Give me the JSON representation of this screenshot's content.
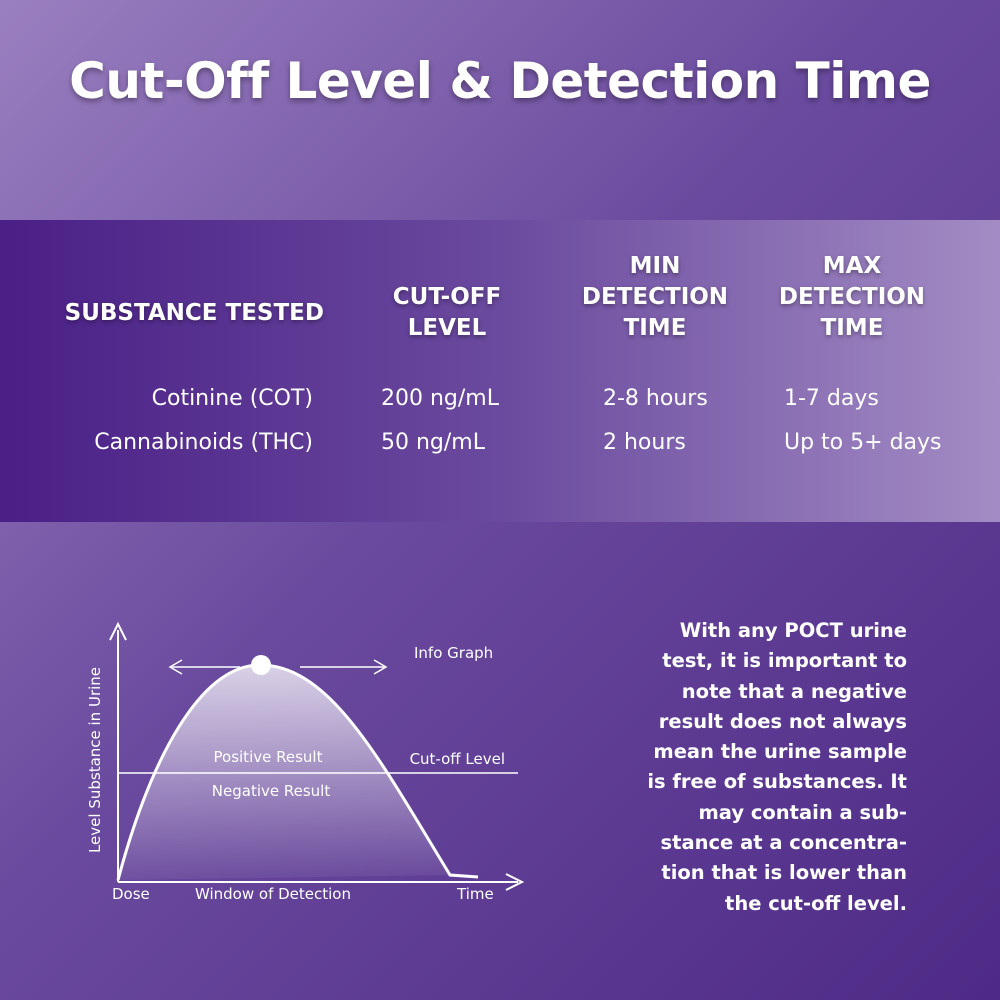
{
  "title": "Cut-Off Level & Detection Time",
  "table": {
    "headers": [
      "SUBSTANCE TESTED",
      "CUT-OFF LEVEL",
      "MIN DETECTION TIME",
      "MAX DETECTION TIME"
    ],
    "rows": [
      [
        "Cotinine (COT)",
        "200 ng/mL",
        "2-8 hours",
        "1-7 days"
      ],
      [
        "Cannabinoids (THC)",
        "50 ng/mL",
        "2 hours",
        "Up to 5+ days"
      ]
    ]
  },
  "diagram": {
    "title": "Info Graph",
    "y_label": "Level Substance in Urine",
    "above": "Positive Result",
    "below": "Negative Result",
    "line": "Cut-off Level",
    "x_start": "Dose",
    "x_middle": "Window of Detection",
    "x_end": "Time"
  },
  "note": {
    "lines": [
      "With any POCT urine",
      "test, it is important to",
      "note that a negative",
      "result does not always",
      "mean the urine sample",
      "is free of substances. It",
      "may contain a sub-",
      "stance at a concentra-",
      "tion that is lower than",
      "the cut-off level."
    ]
  }
}
